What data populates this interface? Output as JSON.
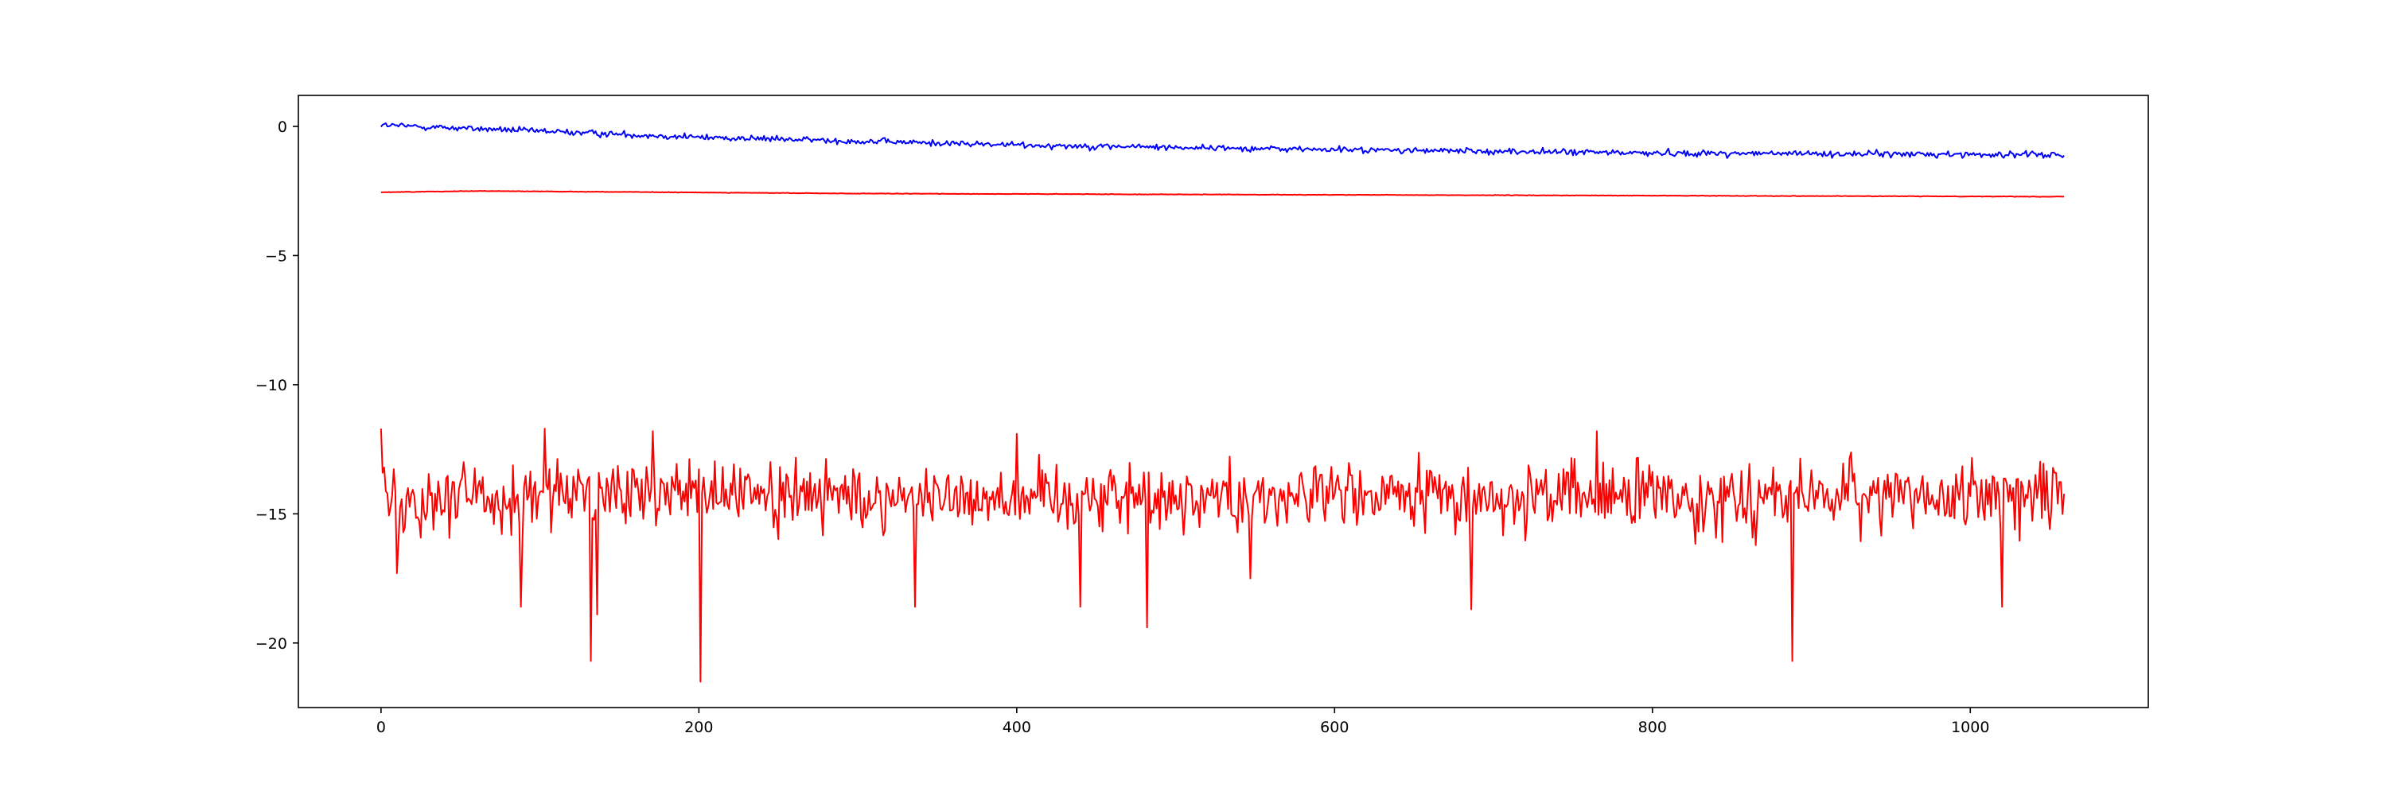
{
  "chart_data": {
    "type": "line",
    "title": "",
    "xlabel": "",
    "ylabel": "",
    "xlim": [
      -52,
      1112
    ],
    "ylim": [
      -22.5,
      1.2
    ],
    "x_ticks": [
      0,
      200,
      400,
      600,
      800,
      1000
    ],
    "y_ticks": [
      0,
      -5,
      -10,
      -15,
      -20
    ],
    "x_tick_labels": [
      "0",
      "200",
      "400",
      "600",
      "800",
      "1000"
    ],
    "y_tick_labels": [
      "0",
      "−5",
      "−10",
      "−15",
      "−20"
    ],
    "grid": false,
    "legend": "none",
    "n_points": 1060,
    "series": [
      {
        "color": "#0000ff",
        "trend": [
          [
            0,
            0.05
          ],
          [
            200,
            -0.42
          ],
          [
            400,
            -0.72
          ],
          [
            600,
            -0.9
          ],
          [
            800,
            -1.03
          ],
          [
            1059,
            -1.1
          ]
        ],
        "noise_amplitude": 0.12
      },
      {
        "color": "#ff0000",
        "trend": [
          [
            0,
            -2.55
          ],
          [
            60,
            -2.5
          ],
          [
            300,
            -2.6
          ],
          [
            600,
            -2.65
          ],
          [
            1059,
            -2.72
          ]
        ],
        "noise_amplitude": 0.01
      },
      {
        "color": "#ff0000",
        "mean": -14.3,
        "spread": 0.9,
        "peaks_up": [
          [
            0,
            -11.7
          ],
          [
            103,
            -11.7
          ],
          [
            171,
            -11.8
          ],
          [
            400,
            -11.9
          ],
          [
            765,
            -11.8
          ]
        ],
        "dips": [
          [
            10,
            -17.3
          ],
          [
            88,
            -18.6
          ],
          [
            132,
            -20.7
          ],
          [
            136,
            -18.9
          ],
          [
            201,
            -21.5
          ],
          [
            336,
            -18.6
          ],
          [
            440,
            -18.6
          ],
          [
            482,
            -19.4
          ],
          [
            547,
            -17.5
          ],
          [
            686,
            -18.7
          ],
          [
            888,
            -20.7
          ],
          [
            1020,
            -18.6
          ]
        ]
      }
    ]
  }
}
